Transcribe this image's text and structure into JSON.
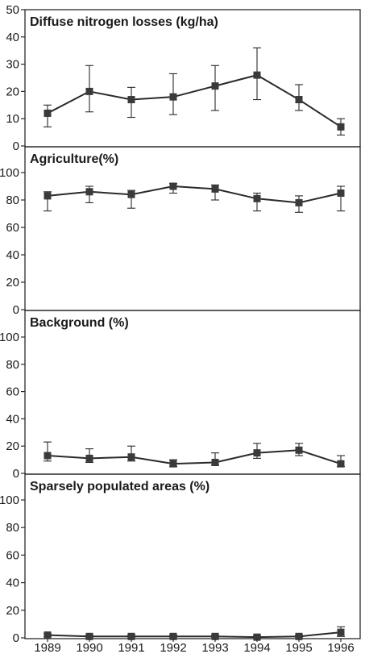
{
  "chart_data": [
    {
      "type": "line",
      "title": "Diffuse nitrogen losses (kg/ha)",
      "x": [
        1989,
        1990,
        1991,
        1992,
        1993,
        1994,
        1995,
        1996
      ],
      "values": [
        12,
        20,
        17,
        18,
        22,
        26,
        17,
        7
      ],
      "error_low": [
        7,
        12.5,
        10.5,
        11.5,
        13,
        17,
        13,
        4
      ],
      "error_high": [
        15,
        29.5,
        21.5,
        26.5,
        29.5,
        36,
        22.5,
        10
      ],
      "ylim": [
        0,
        50
      ],
      "yticks": [
        0,
        10,
        20,
        30,
        40,
        50
      ],
      "grid": false
    },
    {
      "type": "line",
      "title": "Agriculture(%)",
      "x": [
        1989,
        1990,
        1991,
        1992,
        1993,
        1994,
        1995,
        1996
      ],
      "values": [
        83,
        86,
        84,
        90,
        88,
        81,
        78,
        85
      ],
      "error_low": [
        72,
        78,
        74,
        85,
        80,
        72,
        71,
        72
      ],
      "error_high": [
        86,
        90,
        87,
        92,
        91,
        85,
        83,
        90
      ],
      "ylim": [
        0,
        100
      ],
      "yticks": [
        0,
        20,
        40,
        60,
        80,
        100
      ],
      "grid": false
    },
    {
      "type": "line",
      "title": "Background (%)",
      "x": [
        1989,
        1990,
        1991,
        1992,
        1993,
        1994,
        1995,
        1996
      ],
      "values": [
        13,
        11,
        12,
        7,
        8,
        15,
        17,
        7
      ],
      "error_low": [
        9,
        8,
        9,
        5,
        6,
        11,
        13,
        5
      ],
      "error_high": [
        23,
        18,
        20,
        10,
        15,
        22,
        22,
        13
      ],
      "ylim": [
        0,
        100
      ],
      "yticks": [
        0,
        20,
        40,
        60,
        80,
        100
      ],
      "grid": false
    },
    {
      "type": "line",
      "title": "Sparsely populated areas (%)",
      "x": [
        1989,
        1990,
        1991,
        1992,
        1993,
        1994,
        1995,
        1996
      ],
      "values": [
        2,
        1,
        1,
        1,
        1,
        0.5,
        1,
        4
      ],
      "error_low": [
        1,
        0.5,
        0.5,
        0.5,
        0.5,
        0,
        0.5,
        1
      ],
      "error_high": [
        3,
        2,
        2,
        2,
        2,
        1.5,
        2,
        8
      ],
      "ylim": [
        0,
        100
      ],
      "yticks": [
        0,
        20,
        40,
        60,
        80,
        100
      ],
      "xticks": [
        "1989",
        "1990",
        "1991",
        "1992",
        "1993",
        "1994",
        "1995",
        "1996"
      ],
      "grid": false
    }
  ]
}
